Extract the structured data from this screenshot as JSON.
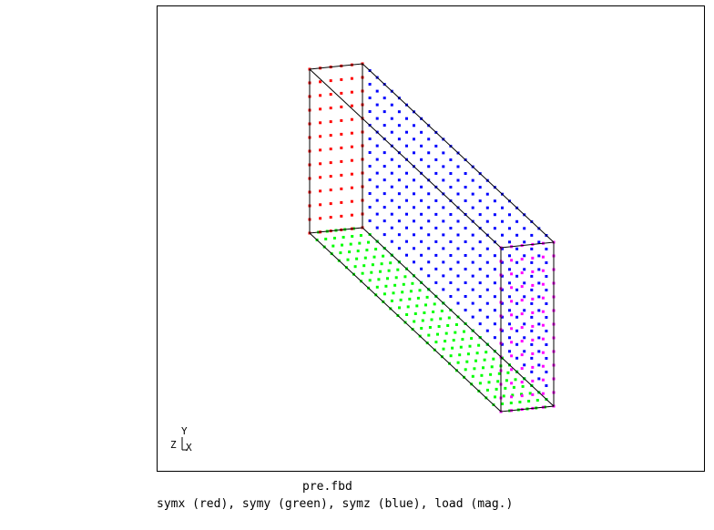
{
  "viewer": {
    "filename": "pre.fbd",
    "legend": "symx (red), symy (green), symz (blue), load (mag.)"
  },
  "axes_triad": {
    "y_label": "Y",
    "z_label": "Z",
    "x_label": "X"
  },
  "colors": {
    "symx": "#ff0000",
    "symy": "#00ff00",
    "symz": "#0000ff",
    "load": "#ff00ff",
    "edges": "#000000"
  },
  "model": {
    "node_sets": [
      "symx",
      "symy",
      "symz",
      "load"
    ]
  }
}
